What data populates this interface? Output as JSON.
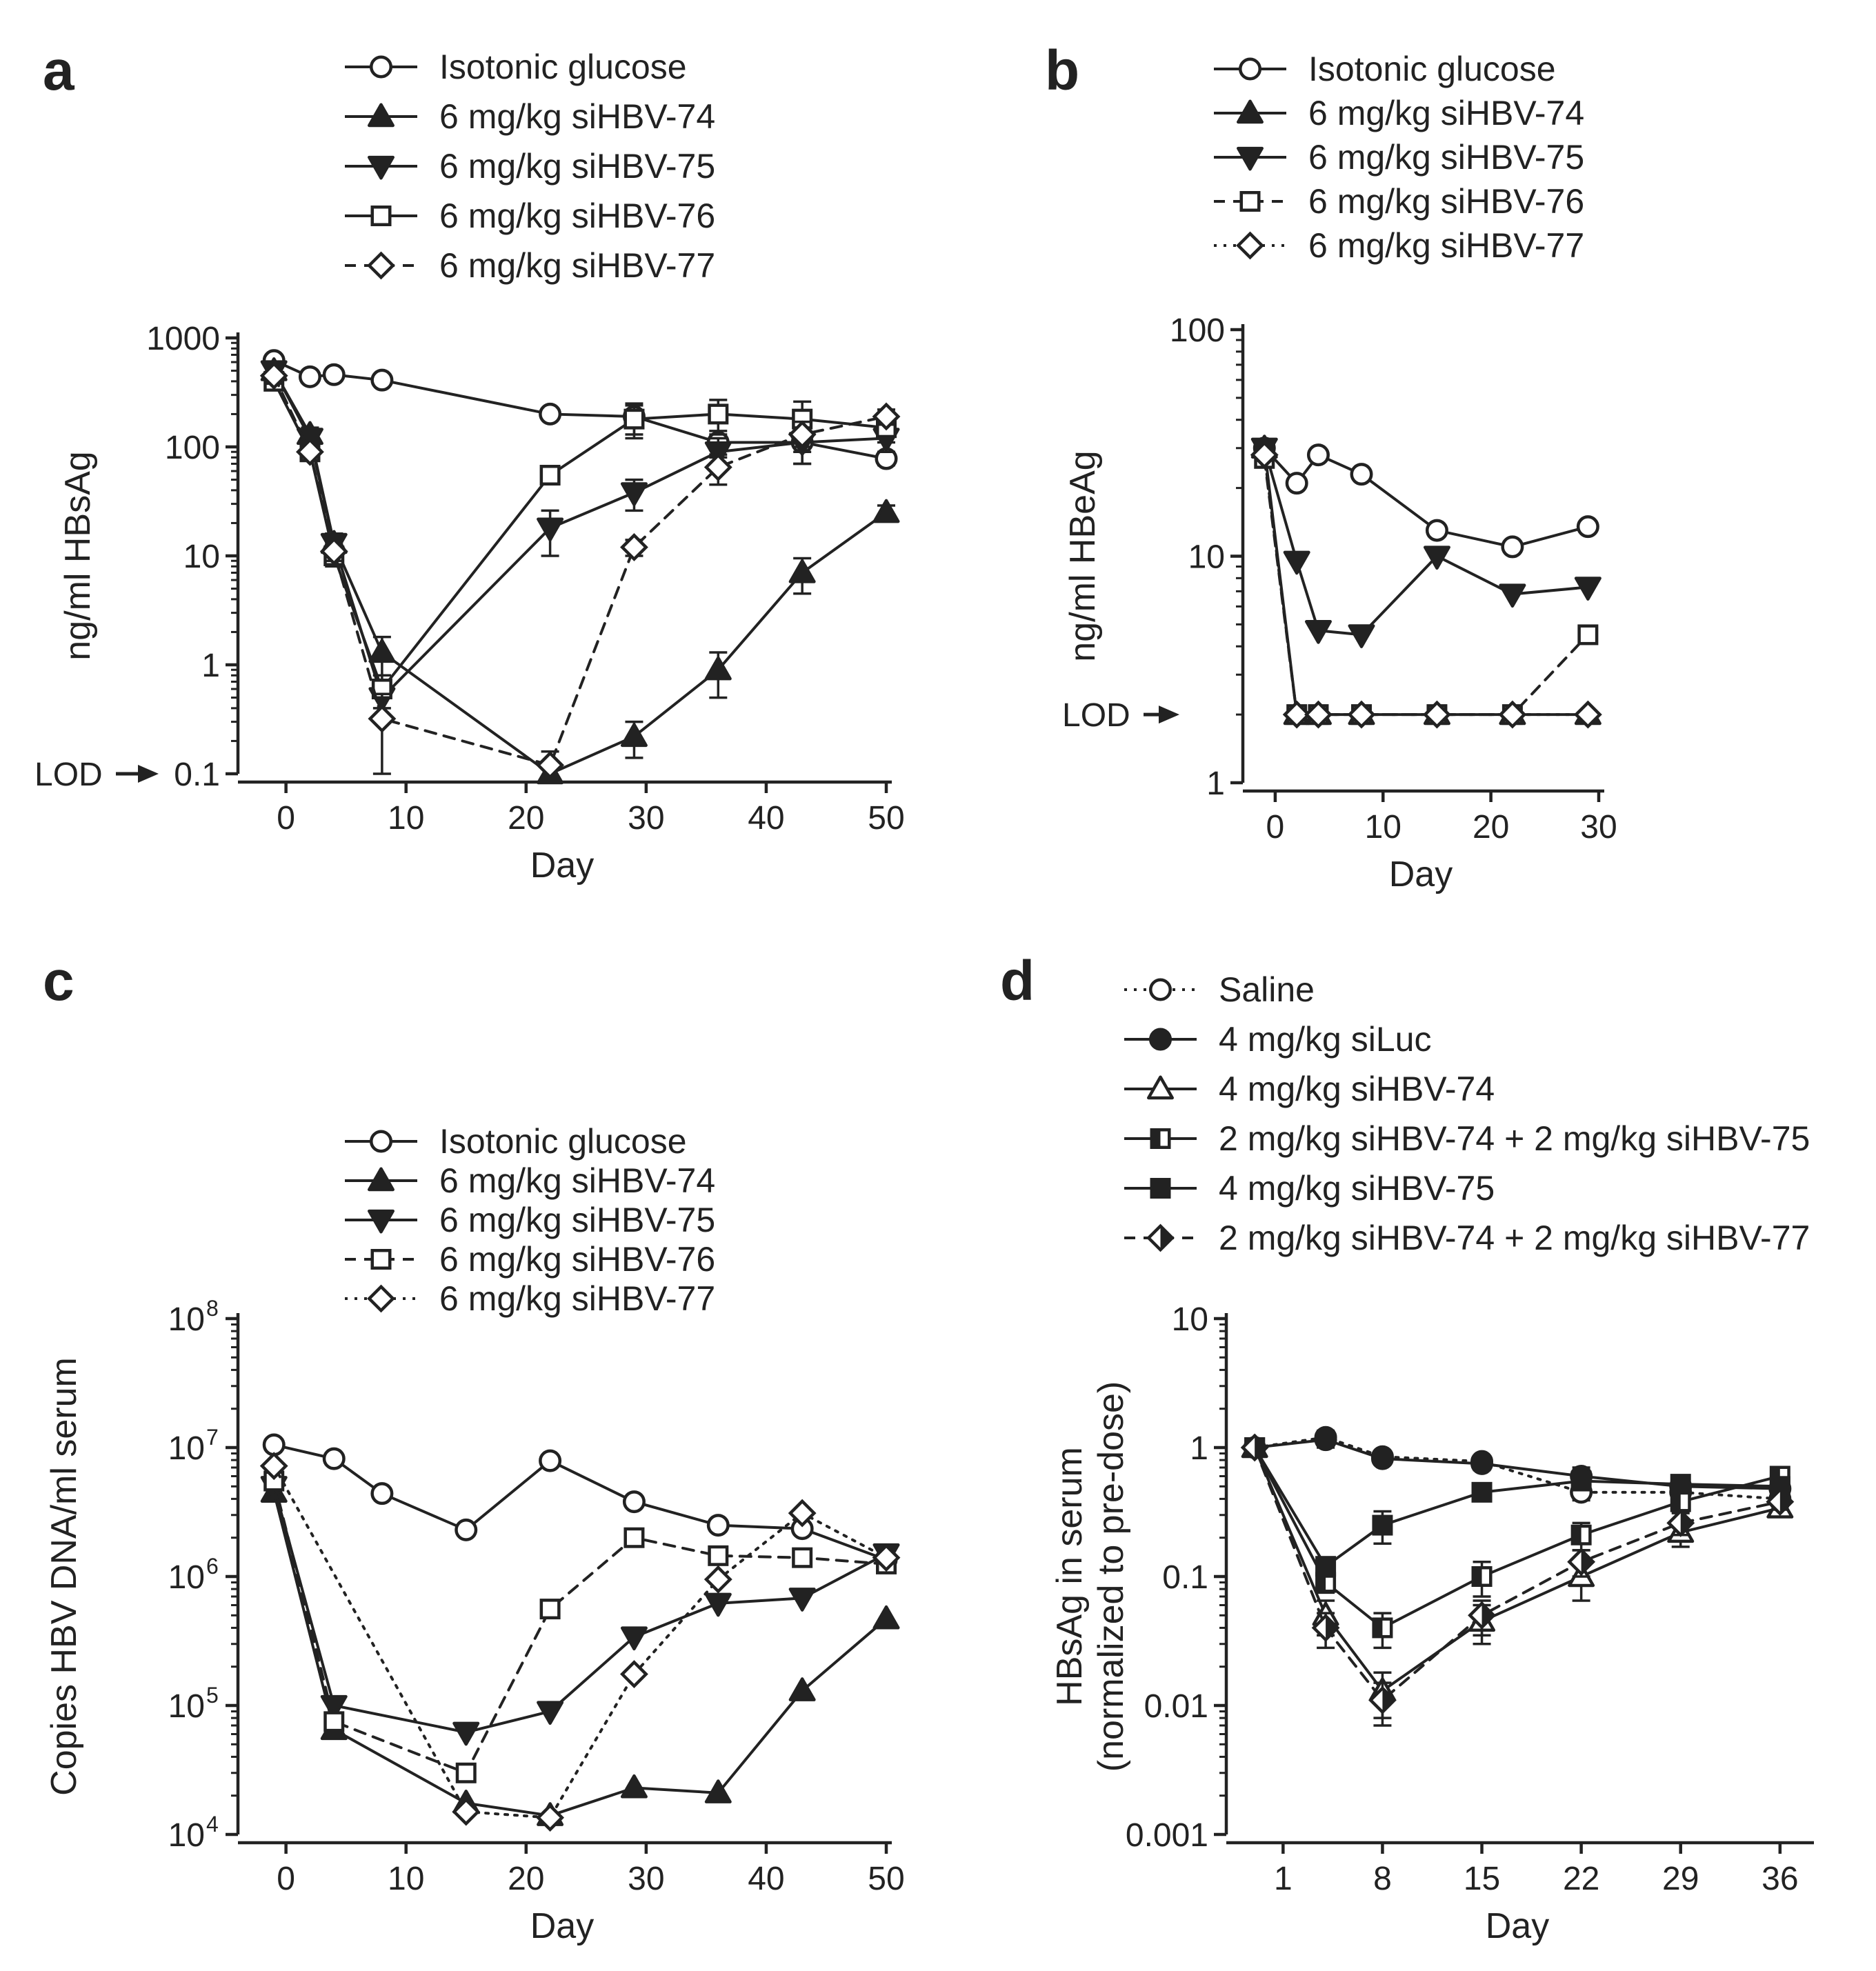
{
  "figure": {
    "colors": {
      "ink": "#222222",
      "paper": "#ffffff"
    }
  },
  "chart_data": [
    {
      "id": "a",
      "panel_label": "a",
      "type": "line",
      "yscale": "log",
      "xlabel": "Day",
      "ylabel": "ng/ml HBsAg",
      "xlim": [
        -4,
        50
      ],
      "ylim": [
        0.1,
        1000
      ],
      "xticks": [
        0,
        10,
        20,
        30,
        40,
        50
      ],
      "yticks": [
        {
          "v": 0.1,
          "label": "0.1"
        },
        {
          "v": 1,
          "label": "1"
        },
        {
          "v": 10,
          "label": "10"
        },
        {
          "v": 100,
          "label": "100"
        },
        {
          "v": 1000,
          "label": "1000"
        }
      ],
      "lod": {
        "label": "LOD",
        "value": 0.1,
        "side": "y-axis"
      },
      "legend_position": "top",
      "series": [
        {
          "name": "Isotonic glucose",
          "marker": "circle-open",
          "dash": "solid",
          "x": [
            -1,
            2,
            4,
            8,
            22,
            29,
            36,
            43,
            50
          ],
          "y": [
            620,
            440,
            460,
            410,
            200,
            190,
            110,
            110,
            78
          ],
          "err": [
            60,
            30,
            30,
            30,
            20,
            60,
            30,
            40,
            10
          ]
        },
        {
          "name": "6 mg/kg siHBV-74",
          "marker": "triangle-up-filled",
          "dash": "solid",
          "x": [
            -1,
            2,
            4,
            8,
            22,
            29,
            36,
            43,
            50
          ],
          "y": [
            500,
            130,
            13,
            1.3,
            0.1,
            0.22,
            0.9,
            7,
            25
          ],
          "err": [
            80,
            20,
            3,
            0.5,
            0.02,
            0.08,
            0.4,
            2.5,
            4
          ]
        },
        {
          "name": "6 mg/kg siHBV-75",
          "marker": "triangle-down-filled",
          "dash": "solid",
          "x": [
            -1,
            2,
            4,
            8,
            22,
            29,
            36,
            43,
            50
          ],
          "y": [
            500,
            120,
            13,
            0.5,
            18,
            38,
            90,
            110,
            120
          ],
          "err": [
            80,
            20,
            3,
            0.2,
            8,
            12,
            30,
            40,
            30
          ]
        },
        {
          "name": "6 mg/kg siHBV-76",
          "marker": "square-open",
          "dash": "solid",
          "x": [
            -1,
            2,
            4,
            8,
            22,
            29,
            36,
            43,
            50
          ],
          "y": [
            400,
            90,
            10,
            0.6,
            55,
            180,
            200,
            180,
            150
          ],
          "err": [
            60,
            15,
            2,
            0.2,
            8,
            60,
            70,
            80,
            40
          ]
        },
        {
          "name": "6 mg/kg siHBV-77",
          "marker": "diamond-open",
          "dash": "dashed",
          "x": [
            -1,
            2,
            4,
            8,
            22,
            29,
            36,
            43,
            50
          ],
          "y": [
            450,
            90,
            11,
            0.32,
            0.12,
            12,
            65,
            130,
            190
          ],
          "err": [
            70,
            15,
            2,
            0.22,
            0.04,
            2,
            20,
            40,
            30
          ]
        }
      ]
    },
    {
      "id": "b",
      "panel_label": "b",
      "type": "line",
      "yscale": "log",
      "xlabel": "Day",
      "ylabel": "ng/ml HBeAg",
      "xlim": [
        -3,
        30
      ],
      "ylim": [
        1,
        100
      ],
      "xticks": [
        0,
        10,
        20,
        30
      ],
      "yticks": [
        {
          "v": 1,
          "label": "1"
        },
        {
          "v": 10,
          "label": "10"
        },
        {
          "v": 100,
          "label": "100"
        }
      ],
      "lod": {
        "label": "LOD",
        "value": 2,
        "side": "y-axis"
      },
      "legend_position": "top",
      "series": [
        {
          "name": "Isotonic glucose",
          "marker": "circle-open",
          "dash": "solid",
          "x": [
            -1,
            2,
            4,
            8,
            15,
            22,
            29
          ],
          "y": [
            30,
            21,
            28,
            23,
            13,
            11,
            13.5
          ],
          "err": []
        },
        {
          "name": "6 mg/kg siHBV-74",
          "marker": "triangle-up-filled",
          "dash": "solid",
          "x": [
            -1,
            2,
            4,
            8,
            15,
            22,
            29
          ],
          "y": [
            30,
            2,
            2,
            2,
            2,
            2,
            2
          ],
          "err": []
        },
        {
          "name": "6 mg/kg siHBV-75",
          "marker": "triangle-down-filled",
          "dash": "solid",
          "x": [
            -1,
            2,
            4,
            8,
            15,
            22,
            29
          ],
          "y": [
            30,
            9.5,
            4.7,
            4.5,
            10,
            6.8,
            7.3
          ],
          "err": []
        },
        {
          "name": "6 mg/kg siHBV-76",
          "marker": "square-open",
          "dash": "dashed",
          "x": [
            -1,
            2,
            4,
            8,
            15,
            22,
            29
          ],
          "y": [
            27,
            2,
            2,
            2,
            2,
            2,
            4.5
          ],
          "err": []
        },
        {
          "name": "6 mg/kg siHBV-77",
          "marker": "diamond-open",
          "dash": "dotted",
          "x": [
            -1,
            2,
            4,
            8,
            15,
            22,
            29
          ],
          "y": [
            28,
            2,
            2,
            2,
            2,
            2,
            2
          ],
          "err": []
        }
      ]
    },
    {
      "id": "c",
      "panel_label": "c",
      "type": "line",
      "yscale": "log",
      "xlabel": "Day",
      "ylabel": "Copies HBV DNA/ml serum",
      "xlim": [
        -4,
        50
      ],
      "ylim": [
        10000,
        100000000
      ],
      "xticks": [
        0,
        10,
        20,
        30,
        40,
        50
      ],
      "yticks": [
        {
          "v": 10000,
          "label": "10",
          "sup": "4"
        },
        {
          "v": 100000,
          "label": "10",
          "sup": "5"
        },
        {
          "v": 1000000,
          "label": "10",
          "sup": "6"
        },
        {
          "v": 10000000,
          "label": "10",
          "sup": "7"
        },
        {
          "v": 100000000,
          "label": "10",
          "sup": "8"
        }
      ],
      "legend_position": "top",
      "series": [
        {
          "name": "Isotonic glucose",
          "marker": "circle-open",
          "dash": "solid",
          "x": [
            -1,
            4,
            8,
            15,
            22,
            29,
            36,
            43,
            50
          ],
          "y": [
            10500000,
            8200000,
            4400000,
            2300000,
            7900000,
            3800000,
            2500000,
            2350000,
            1350000
          ],
          "err": []
        },
        {
          "name": "6 mg/kg siHBV-74",
          "marker": "triangle-up-filled",
          "dash": "solid",
          "x": [
            -1,
            4,
            15,
            22,
            29,
            36,
            43,
            50
          ],
          "y": [
            4500000,
            65000,
            17500,
            14000,
            23000,
            21000,
            130000,
            470000
          ],
          "err": []
        },
        {
          "name": "6 mg/kg siHBV-75",
          "marker": "triangle-down-filled",
          "dash": "solid",
          "x": [
            -1,
            4,
            15,
            22,
            29,
            36,
            43,
            50
          ],
          "y": [
            5000000,
            100000,
            62000,
            90000,
            340000,
            620000,
            680000,
            1500000
          ],
          "err": []
        },
        {
          "name": "6 mg/kg siHBV-76",
          "marker": "square-open",
          "dash": "dashed",
          "x": [
            -1,
            4,
            15,
            22,
            29,
            36,
            43,
            50
          ],
          "y": [
            5500000,
            75000,
            30000,
            560000,
            2000000,
            1450000,
            1400000,
            1250000
          ],
          "err": []
        },
        {
          "name": "6 mg/kg siHBV-77",
          "marker": "diamond-open",
          "dash": "dotted",
          "x": [
            -1,
            15,
            22,
            29,
            36,
            43,
            50
          ],
          "y": [
            7200000,
            15000,
            13500,
            175000,
            950000,
            3100000,
            1400000
          ],
          "err": []
        }
      ]
    },
    {
      "id": "d",
      "panel_label": "d",
      "type": "line",
      "yscale": "log",
      "xlabel": "Day",
      "ylabel": "HBsAg in serum",
      "ylabel2": "(normalized to pre-dose)",
      "xlim": [
        -3,
        38
      ],
      "ylim": [
        0.001,
        10
      ],
      "xticks": [
        1,
        8,
        15,
        22,
        29,
        36
      ],
      "yticks": [
        {
          "v": 0.001,
          "label": "0.001"
        },
        {
          "v": 0.01,
          "label": "0.01"
        },
        {
          "v": 0.1,
          "label": "0.1"
        },
        {
          "v": 1,
          "label": "1"
        },
        {
          "v": 10,
          "label": "10"
        }
      ],
      "legend_position": "top",
      "series": [
        {
          "name": "Saline",
          "marker": "circle-open",
          "dash": "dotted",
          "x": [
            -1,
            4,
            8,
            15,
            22,
            29,
            36
          ],
          "y": [
            1,
            1.2,
            0.85,
            0.78,
            0.45,
            0.45,
            0.4
          ],
          "err": [
            0.08,
            0.15,
            0.08,
            0.08,
            0.06,
            0.05,
            0.05
          ]
        },
        {
          "name": "4 mg/kg siLuc",
          "marker": "circle-filled",
          "dash": "solid",
          "x": [
            -1,
            4,
            8,
            15,
            22,
            29,
            36
          ],
          "y": [
            1,
            1.15,
            0.82,
            0.75,
            0.6,
            0.5,
            0.48
          ],
          "err": [
            0.08,
            0.15,
            0.08,
            0.08,
            0.1,
            0.06,
            0.05
          ]
        },
        {
          "name": "4 mg/kg siHBV-74",
          "marker": "triangle-up-open",
          "dash": "solid",
          "x": [
            -1,
            4,
            8,
            15,
            22,
            29,
            36
          ],
          "y": [
            1,
            0.05,
            0.013,
            0.045,
            0.1,
            0.22,
            0.34
          ],
          "err": [
            0.08,
            0.015,
            0.005,
            0.015,
            0.035,
            0.05,
            0.05
          ]
        },
        {
          "name": "2 mg/kg siHBV-74 + 2 mg/kg siHBV-75",
          "marker": "square-half",
          "dash": "solid",
          "x": [
            -1,
            4,
            8,
            15,
            22,
            29,
            36
          ],
          "y": [
            1,
            0.09,
            0.04,
            0.1,
            0.21,
            0.38,
            0.6
          ],
          "err": [
            0.08,
            0.015,
            0.012,
            0.03,
            0.05,
            0.06,
            0.06
          ]
        },
        {
          "name": "4 mg/kg siHBV-75",
          "marker": "square-filled",
          "dash": "solid",
          "x": [
            -1,
            4,
            8,
            15,
            22,
            29,
            36
          ],
          "y": [
            1,
            0.12,
            0.25,
            0.45,
            0.55,
            0.52,
            0.5
          ],
          "err": [
            0.08,
            0.02,
            0.07,
            0.05,
            0.06,
            0.05,
            0.05
          ]
        },
        {
          "name": "2 mg/kg siHBV-74 + 2 mg/kg siHBV-77",
          "marker": "diamond-half",
          "dash": "dashed",
          "x": [
            -1,
            4,
            8,
            15,
            22,
            29,
            36
          ],
          "y": [
            1,
            0.04,
            0.011,
            0.05,
            0.13,
            0.26,
            0.38
          ],
          "err": [
            0.08,
            0.012,
            0.004,
            0.015,
            0.03,
            0.05,
            0.05
          ]
        }
      ]
    }
  ]
}
